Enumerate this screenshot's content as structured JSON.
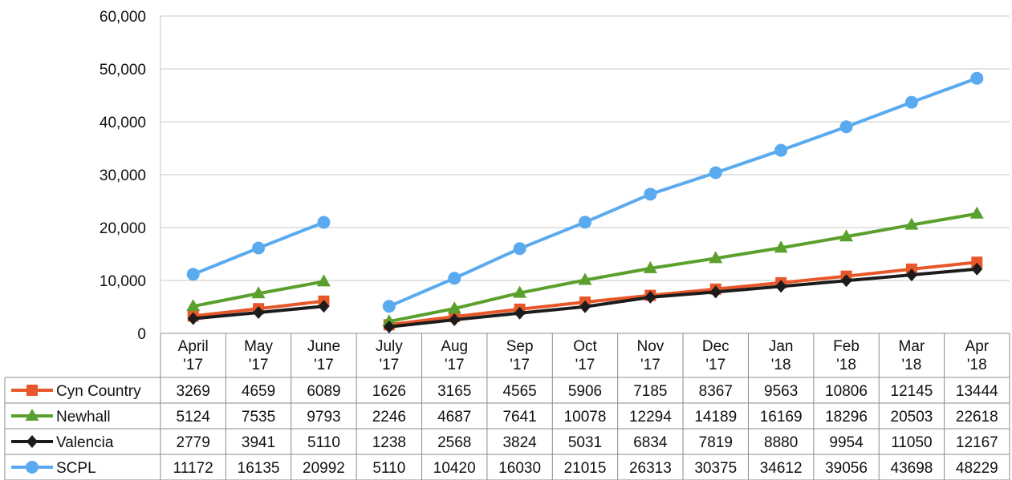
{
  "chart_data": {
    "type": "line",
    "title": "",
    "xlabel": "",
    "ylabel": "",
    "ylim": [
      0,
      60000
    ],
    "y_ticks": [
      "0",
      "10,000",
      "20,000",
      "30,000",
      "40,000",
      "50,000",
      "60,000"
    ],
    "grid": true,
    "legend_placement": "data-table-left",
    "categories": [
      [
        "April",
        "'17"
      ],
      [
        "May",
        "'17"
      ],
      [
        "June",
        "'17"
      ],
      [
        "July",
        "'17"
      ],
      [
        "Aug",
        "'17"
      ],
      [
        "Sep",
        "'17"
      ],
      [
        "Oct",
        "'17"
      ],
      [
        "Nov",
        "'17"
      ],
      [
        "Dec",
        "'17"
      ],
      [
        "Jan",
        "'18"
      ],
      [
        "Feb",
        "'18"
      ],
      [
        "Mar",
        "'18"
      ],
      [
        "Apr",
        "'18"
      ]
    ],
    "segments": [
      [
        0,
        2
      ],
      [
        3,
        12
      ]
    ],
    "series": [
      {
        "name": "Cyn Country",
        "color": "#e8572a",
        "marker": "square",
        "values": [
          3269,
          4659,
          6089,
          1626,
          3165,
          4565,
          5906,
          7185,
          8367,
          9563,
          10806,
          12145,
          13444
        ]
      },
      {
        "name": "Newhall",
        "color": "#5aa02c",
        "marker": "triangle",
        "values": [
          5124,
          7535,
          9793,
          2246,
          4687,
          7641,
          10078,
          12294,
          14189,
          16169,
          18296,
          20503,
          22618
        ]
      },
      {
        "name": "Valencia",
        "color": "#1c1c1c",
        "marker": "diamond",
        "values": [
          2779,
          3941,
          5110,
          1238,
          2568,
          3824,
          5031,
          6834,
          7819,
          8880,
          9954,
          11050,
          12167
        ]
      },
      {
        "name": "SCPL",
        "color": "#5aaaf0",
        "marker": "circle",
        "values": [
          11172,
          16135,
          20992,
          5110,
          10420,
          16030,
          21015,
          26313,
          30375,
          34612,
          39056,
          43698,
          48229
        ]
      }
    ]
  }
}
